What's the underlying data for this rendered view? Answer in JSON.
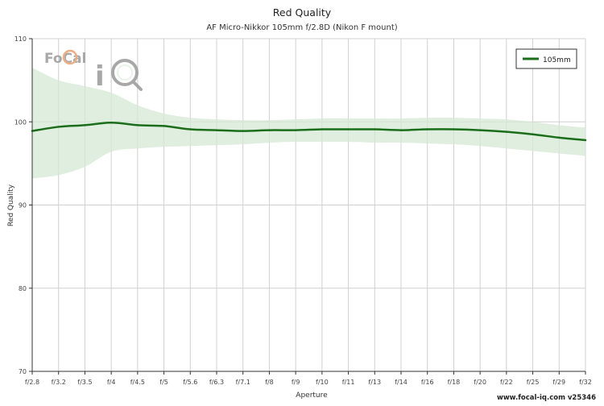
{
  "chart_data": {
    "type": "line",
    "title": "Red Quality",
    "subtitle": "AF Micro-Nikkor 105mm f/2.8D (Nikon F mount)",
    "xlabel": "Aperture",
    "ylabel": "Red Quality",
    "ylim": [
      70,
      110
    ],
    "yticks": [
      70,
      80,
      90,
      100,
      110
    ],
    "categories": [
      "f/2.8",
      "f/3.2",
      "f/3.5",
      "f/4",
      "f/4.5",
      "f/5",
      "f/5.6",
      "f/6.3",
      "f/7.1",
      "f/8",
      "f/9",
      "f/10",
      "f/11",
      "f/13",
      "f/14",
      "f/16",
      "f/18",
      "f/20",
      "f/22",
      "f/25",
      "f/29",
      "f/32"
    ],
    "grid": true,
    "legend_position": "top-right",
    "series": [
      {
        "name": "105mm",
        "color": "#1a6e1a",
        "values": [
          98.9,
          99.4,
          99.6,
          99.9,
          99.6,
          99.5,
          99.1,
          99.0,
          98.9,
          99.0,
          99.0,
          99.1,
          99.1,
          99.1,
          99.0,
          99.1,
          99.1,
          99.0,
          98.8,
          98.5,
          98.1,
          97.8
        ],
        "band_upper": [
          106.5,
          105.0,
          104.3,
          103.5,
          102.0,
          101.0,
          100.5,
          100.3,
          100.2,
          100.2,
          100.3,
          100.4,
          100.4,
          100.4,
          100.4,
          100.5,
          100.5,
          100.4,
          100.3,
          100.0,
          99.6,
          99.3
        ],
        "band_lower": [
          93.2,
          93.6,
          94.6,
          96.4,
          96.8,
          97.0,
          97.1,
          97.2,
          97.3,
          97.5,
          97.6,
          97.6,
          97.6,
          97.5,
          97.5,
          97.4,
          97.3,
          97.1,
          96.8,
          96.5,
          96.2,
          95.9
        ]
      }
    ],
    "band_color": "#d6e8d6",
    "footer": "www.focal-iq.com  v25346",
    "logo_text": "FoCal iQ"
  }
}
